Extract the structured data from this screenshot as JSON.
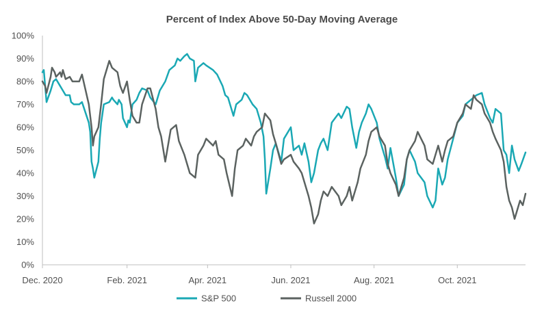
{
  "chart_data": {
    "type": "line",
    "title": "Percent of Index Above 50-Day Moving Average",
    "xlabel": "",
    "ylabel": "",
    "ylim": [
      0,
      100
    ],
    "y_ticks": [
      "0%",
      "10%",
      "20%",
      "30%",
      "40%",
      "50%",
      "60%",
      "70%",
      "80%",
      "90%",
      "100%"
    ],
    "x_tick_labels": [
      "Dec. 2020",
      "Feb. 2021",
      "Apr. 2021",
      "Jun. 2021",
      "Aug. 2021",
      "Oct. 2021"
    ],
    "x_tick_dates": [
      "2020-12-01",
      "2021-02-01",
      "2021-04-01",
      "2021-06-01",
      "2021-08-01",
      "2021-10-01"
    ],
    "x_range": [
      "2020-12-01",
      "2021-11-20"
    ],
    "grid": false,
    "legend_position": "bottom",
    "series": [
      {
        "name": "S&P 500",
        "color": "#1aa8b4",
        "points": [
          [
            "2020-12-01",
            84
          ],
          [
            "2020-12-02",
            85
          ],
          [
            "2020-12-03",
            78
          ],
          [
            "2020-12-04",
            71
          ],
          [
            "2020-12-07",
            76
          ],
          [
            "2020-12-09",
            80
          ],
          [
            "2020-12-11",
            81
          ],
          [
            "2020-12-14",
            78
          ],
          [
            "2020-12-16",
            76
          ],
          [
            "2020-12-18",
            74
          ],
          [
            "2020-12-21",
            74
          ],
          [
            "2020-12-22",
            71
          ],
          [
            "2020-12-24",
            70
          ],
          [
            "2020-12-28",
            70
          ],
          [
            "2020-12-30",
            71
          ],
          [
            "2021-01-04",
            62
          ],
          [
            "2021-01-05",
            58
          ],
          [
            "2021-01-06",
            45
          ],
          [
            "2021-01-07",
            42
          ],
          [
            "2021-01-08",
            38
          ],
          [
            "2021-01-11",
            45
          ],
          [
            "2021-01-12",
            55
          ],
          [
            "2021-01-13",
            62
          ],
          [
            "2021-01-14",
            66
          ],
          [
            "2021-01-15",
            70
          ],
          [
            "2021-01-19",
            71
          ],
          [
            "2021-01-21",
            73
          ],
          [
            "2021-01-22",
            72
          ],
          [
            "2021-01-25",
            70
          ],
          [
            "2021-01-26",
            72
          ],
          [
            "2021-01-28",
            70
          ],
          [
            "2021-01-29",
            64
          ],
          [
            "2021-02-01",
            60
          ],
          [
            "2021-02-02",
            63
          ],
          [
            "2021-02-03",
            62
          ],
          [
            "2021-02-04",
            66
          ],
          [
            "2021-02-05",
            70
          ],
          [
            "2021-02-08",
            72
          ],
          [
            "2021-02-10",
            75
          ],
          [
            "2021-02-12",
            77
          ],
          [
            "2021-02-16",
            76
          ],
          [
            "2021-02-18",
            73
          ],
          [
            "2021-02-22",
            70
          ],
          [
            "2021-02-25",
            76
          ],
          [
            "2021-03-01",
            80
          ],
          [
            "2021-03-04",
            85
          ],
          [
            "2021-03-08",
            87
          ],
          [
            "2021-03-10",
            90
          ],
          [
            "2021-03-12",
            89
          ],
          [
            "2021-03-15",
            91
          ],
          [
            "2021-03-17",
            92
          ],
          [
            "2021-03-19",
            90
          ],
          [
            "2021-03-22",
            89
          ],
          [
            "2021-03-23",
            80
          ],
          [
            "2021-03-25",
            86
          ],
          [
            "2021-03-29",
            88
          ],
          [
            "2021-03-31",
            87
          ],
          [
            "2021-04-05",
            85
          ],
          [
            "2021-04-08",
            83
          ],
          [
            "2021-04-12",
            78
          ],
          [
            "2021-04-14",
            74
          ],
          [
            "2021-04-16",
            73
          ],
          [
            "2021-04-20",
            65
          ],
          [
            "2021-04-22",
            70
          ],
          [
            "2021-04-26",
            72
          ],
          [
            "2021-04-28",
            75
          ],
          [
            "2021-04-30",
            74
          ],
          [
            "2021-05-04",
            70
          ],
          [
            "2021-05-07",
            68
          ],
          [
            "2021-05-10",
            62
          ],
          [
            "2021-05-12",
            56
          ],
          [
            "2021-05-13",
            46
          ],
          [
            "2021-05-14",
            31
          ],
          [
            "2021-05-17",
            42
          ],
          [
            "2021-05-19",
            50
          ],
          [
            "2021-05-21",
            53
          ],
          [
            "2021-05-25",
            45
          ],
          [
            "2021-05-27",
            55
          ],
          [
            "2021-06-01",
            60
          ],
          [
            "2021-06-03",
            50
          ],
          [
            "2021-06-07",
            52
          ],
          [
            "2021-06-09",
            48
          ],
          [
            "2021-06-11",
            53
          ],
          [
            "2021-06-14",
            45
          ],
          [
            "2021-06-16",
            36
          ],
          [
            "2021-06-18",
            40
          ],
          [
            "2021-06-21",
            50
          ],
          [
            "2021-06-23",
            53
          ],
          [
            "2021-06-25",
            55
          ],
          [
            "2021-06-28",
            50
          ],
          [
            "2021-07-01",
            62
          ],
          [
            "2021-07-06",
            66
          ],
          [
            "2021-07-08",
            64
          ],
          [
            "2021-07-12",
            69
          ],
          [
            "2021-07-14",
            68
          ],
          [
            "2021-07-16",
            60
          ],
          [
            "2021-07-19",
            51
          ],
          [
            "2021-07-21",
            58
          ],
          [
            "2021-07-23",
            62
          ],
          [
            "2021-07-26",
            66
          ],
          [
            "2021-07-28",
            70
          ],
          [
            "2021-07-30",
            68
          ],
          [
            "2021-08-03",
            62
          ],
          [
            "2021-08-05",
            55
          ],
          [
            "2021-08-09",
            47
          ],
          [
            "2021-08-11",
            42
          ],
          [
            "2021-08-13",
            51
          ],
          [
            "2021-08-17",
            38
          ],
          [
            "2021-08-19",
            30
          ],
          [
            "2021-08-23",
            35
          ],
          [
            "2021-08-25",
            46
          ],
          [
            "2021-08-27",
            50
          ],
          [
            "2021-08-31",
            45
          ],
          [
            "2021-09-02",
            40
          ],
          [
            "2021-09-07",
            36
          ],
          [
            "2021-09-09",
            30
          ],
          [
            "2021-09-13",
            25
          ],
          [
            "2021-09-15",
            28
          ],
          [
            "2021-09-17",
            42
          ],
          [
            "2021-09-20",
            35
          ],
          [
            "2021-09-22",
            38
          ],
          [
            "2021-09-24",
            46
          ],
          [
            "2021-09-28",
            55
          ],
          [
            "2021-10-01",
            62
          ],
          [
            "2021-10-05",
            65
          ],
          [
            "2021-10-07",
            70
          ],
          [
            "2021-10-11",
            72
          ],
          [
            "2021-10-13",
            73
          ],
          [
            "2021-10-15",
            74
          ],
          [
            "2021-10-19",
            75
          ],
          [
            "2021-10-21",
            70
          ],
          [
            "2021-10-25",
            64
          ],
          [
            "2021-10-27",
            62
          ],
          [
            "2021-10-29",
            68
          ],
          [
            "2021-11-02",
            66
          ],
          [
            "2021-11-04",
            50
          ],
          [
            "2021-11-06",
            48
          ],
          [
            "2021-11-08",
            40
          ],
          [
            "2021-11-10",
            52
          ],
          [
            "2021-11-12",
            46
          ],
          [
            "2021-11-15",
            41
          ],
          [
            "2021-11-17",
            44
          ],
          [
            "2021-11-20",
            49
          ]
        ]
      },
      {
        "name": "Russell 2000",
        "color": "#5b6260",
        "points": [
          [
            "2020-12-01",
            80
          ],
          [
            "2020-12-03",
            78
          ],
          [
            "2020-12-04",
            75
          ],
          [
            "2020-12-07",
            82
          ],
          [
            "2020-12-08",
            86
          ],
          [
            "2020-12-10",
            84
          ],
          [
            "2020-12-11",
            82
          ],
          [
            "2020-12-14",
            84
          ],
          [
            "2020-12-15",
            82
          ],
          [
            "2020-12-16",
            85
          ],
          [
            "2020-12-18",
            81
          ],
          [
            "2020-12-21",
            82
          ],
          [
            "2020-12-23",
            80
          ],
          [
            "2020-12-28",
            80
          ],
          [
            "2020-12-30",
            83
          ],
          [
            "2021-01-04",
            70
          ],
          [
            "2021-01-06",
            60
          ],
          [
            "2021-01-07",
            52
          ],
          [
            "2021-01-08",
            56
          ],
          [
            "2021-01-11",
            60
          ],
          [
            "2021-01-13",
            70
          ],
          [
            "2021-01-15",
            81
          ],
          [
            "2021-01-19",
            89
          ],
          [
            "2021-01-21",
            86
          ],
          [
            "2021-01-25",
            84
          ],
          [
            "2021-01-27",
            78
          ],
          [
            "2021-01-29",
            75
          ],
          [
            "2021-02-01",
            80
          ],
          [
            "2021-02-02",
            76
          ],
          [
            "2021-02-03",
            72
          ],
          [
            "2021-02-05",
            65
          ],
          [
            "2021-02-08",
            62
          ],
          [
            "2021-02-10",
            62
          ],
          [
            "2021-02-12",
            70
          ],
          [
            "2021-02-16",
            77
          ],
          [
            "2021-02-18",
            77
          ],
          [
            "2021-02-22",
            68
          ],
          [
            "2021-02-24",
            60
          ],
          [
            "2021-02-26",
            56
          ],
          [
            "2021-03-01",
            45
          ],
          [
            "2021-03-03",
            52
          ],
          [
            "2021-03-05",
            59
          ],
          [
            "2021-03-09",
            61
          ],
          [
            "2021-03-11",
            54
          ],
          [
            "2021-03-15",
            48
          ],
          [
            "2021-03-17",
            44
          ],
          [
            "2021-03-19",
            40
          ],
          [
            "2021-03-23",
            38
          ],
          [
            "2021-03-25",
            48
          ],
          [
            "2021-03-29",
            52
          ],
          [
            "2021-03-31",
            55
          ],
          [
            "2021-04-05",
            52
          ],
          [
            "2021-04-07",
            54
          ],
          [
            "2021-04-09",
            48
          ],
          [
            "2021-04-13",
            46
          ],
          [
            "2021-04-15",
            40
          ],
          [
            "2021-04-19",
            30
          ],
          [
            "2021-04-21",
            42
          ],
          [
            "2021-04-23",
            50
          ],
          [
            "2021-04-27",
            52
          ],
          [
            "2021-04-29",
            55
          ],
          [
            "2021-05-03",
            52
          ],
          [
            "2021-05-05",
            56
          ],
          [
            "2021-05-07",
            58
          ],
          [
            "2021-05-11",
            60
          ],
          [
            "2021-05-13",
            66
          ],
          [
            "2021-05-17",
            63
          ],
          [
            "2021-05-19",
            57
          ],
          [
            "2021-05-21",
            53
          ],
          [
            "2021-05-25",
            44
          ],
          [
            "2021-05-27",
            46
          ],
          [
            "2021-06-01",
            48
          ],
          [
            "2021-06-03",
            45
          ],
          [
            "2021-06-07",
            42
          ],
          [
            "2021-06-09",
            40
          ],
          [
            "2021-06-11",
            36
          ],
          [
            "2021-06-14",
            30
          ],
          [
            "2021-06-16",
            25
          ],
          [
            "2021-06-18",
            18
          ],
          [
            "2021-06-21",
            22
          ],
          [
            "2021-06-23",
            28
          ],
          [
            "2021-06-25",
            32
          ],
          [
            "2021-06-28",
            30
          ],
          [
            "2021-07-01",
            34
          ],
          [
            "2021-07-06",
            30
          ],
          [
            "2021-07-08",
            26
          ],
          [
            "2021-07-12",
            30
          ],
          [
            "2021-07-14",
            34
          ],
          [
            "2021-07-16",
            28
          ],
          [
            "2021-07-20",
            36
          ],
          [
            "2021-07-22",
            42
          ],
          [
            "2021-07-26",
            48
          ],
          [
            "2021-07-28",
            54
          ],
          [
            "2021-07-30",
            58
          ],
          [
            "2021-08-03",
            60
          ],
          [
            "2021-08-05",
            56
          ],
          [
            "2021-08-09",
            52
          ],
          [
            "2021-08-11",
            44
          ],
          [
            "2021-08-13",
            40
          ],
          [
            "2021-08-17",
            35
          ],
          [
            "2021-08-19",
            30
          ],
          [
            "2021-08-23",
            38
          ],
          [
            "2021-08-25",
            46
          ],
          [
            "2021-08-27",
            50
          ],
          [
            "2021-08-31",
            54
          ],
          [
            "2021-09-02",
            58
          ],
          [
            "2021-09-07",
            52
          ],
          [
            "2021-09-09",
            46
          ],
          [
            "2021-09-13",
            44
          ],
          [
            "2021-09-15",
            48
          ],
          [
            "2021-09-17",
            52
          ],
          [
            "2021-09-20",
            45
          ],
          [
            "2021-09-22",
            50
          ],
          [
            "2021-09-24",
            54
          ],
          [
            "2021-09-28",
            56
          ],
          [
            "2021-10-01",
            62
          ],
          [
            "2021-10-05",
            66
          ],
          [
            "2021-10-07",
            70
          ],
          [
            "2021-10-11",
            68
          ],
          [
            "2021-10-13",
            74
          ],
          [
            "2021-10-15",
            72
          ],
          [
            "2021-10-19",
            70
          ],
          [
            "2021-10-21",
            66
          ],
          [
            "2021-10-25",
            62
          ],
          [
            "2021-10-27",
            58
          ],
          [
            "2021-10-29",
            55
          ],
          [
            "2021-11-02",
            50
          ],
          [
            "2021-11-04",
            45
          ],
          [
            "2021-11-06",
            34
          ],
          [
            "2021-11-08",
            28
          ],
          [
            "2021-11-10",
            25
          ],
          [
            "2021-11-12",
            20
          ],
          [
            "2021-11-14",
            24
          ],
          [
            "2021-11-16",
            28
          ],
          [
            "2021-11-18",
            26
          ],
          [
            "2021-11-20",
            31
          ]
        ]
      }
    ]
  }
}
